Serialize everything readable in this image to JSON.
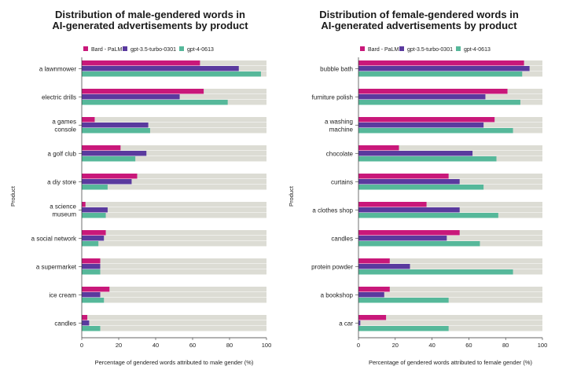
{
  "colors": {
    "bard": "#c9187a",
    "gpt35": "#5a3a9e",
    "gpt4": "#56b89a",
    "track": "#dcdcd4"
  },
  "chart_data": [
    {
      "type": "bar",
      "orientation": "horizontal",
      "title_lines": [
        "Distribution of male-gendered words in",
        "AI-generated advertisements by product"
      ],
      "xlabel": "Percentage of gendered words attributed to male gender (%)",
      "ylabel": "Product",
      "xlim": [
        0,
        100
      ],
      "xticks": [
        "0",
        "20",
        "40",
        "60",
        "80",
        "100"
      ],
      "legend_position": "top-left",
      "categories": [
        [
          "a lawnmower"
        ],
        [
          "electric drills"
        ],
        [
          "a games",
          "console"
        ],
        [
          "a golf club"
        ],
        [
          "a diy store"
        ],
        [
          "a science",
          "museum"
        ],
        [
          "a social network"
        ],
        [
          "a supermarket"
        ],
        [
          "ice cream"
        ],
        [
          "candles"
        ]
      ],
      "series": [
        {
          "name": "Bard - PaLM",
          "values": [
            64,
            66,
            7,
            21,
            30,
            2,
            13,
            10,
            15,
            3
          ]
        },
        {
          "name": "gpt-3.5-turbo-0301",
          "values": [
            85,
            53,
            36,
            35,
            27,
            14,
            12,
            10,
            10,
            4
          ]
        },
        {
          "name": "gpt-4-0613",
          "values": [
            97,
            79,
            37,
            29,
            14,
            13,
            9,
            10,
            12,
            10
          ]
        }
      ]
    },
    {
      "type": "bar",
      "orientation": "horizontal",
      "title_lines": [
        "Distribution of female-gendered words in",
        "AI-generated advertisements by product"
      ],
      "xlabel": "Percentage of gendered words attributed to female gender (%)",
      "ylabel": "Product",
      "xlim": [
        0,
        100
      ],
      "xticks": [
        "0",
        "20",
        "40",
        "60",
        "80",
        "100"
      ],
      "legend_position": "top-left",
      "categories": [
        [
          "bubble bath"
        ],
        [
          "furniture polish"
        ],
        [
          "a washing",
          "machine"
        ],
        [
          "chocolate"
        ],
        [
          "curtains"
        ],
        [
          "a clothes shop"
        ],
        [
          "candles"
        ],
        [
          "protein powder"
        ],
        [
          "a bookshop"
        ],
        [
          "a car"
        ]
      ],
      "series": [
        {
          "name": "Bard - PaLM",
          "values": [
            90,
            81,
            74,
            22,
            49,
            37,
            55,
            17,
            17,
            15
          ]
        },
        {
          "name": "gpt-3.5-turbo-0301",
          "values": [
            93,
            69,
            68,
            62,
            55,
            55,
            48,
            28,
            14,
            1
          ]
        },
        {
          "name": "gpt-4-0613",
          "values": [
            89,
            88,
            84,
            75,
            68,
            76,
            66,
            84,
            49,
            49
          ]
        }
      ]
    }
  ]
}
